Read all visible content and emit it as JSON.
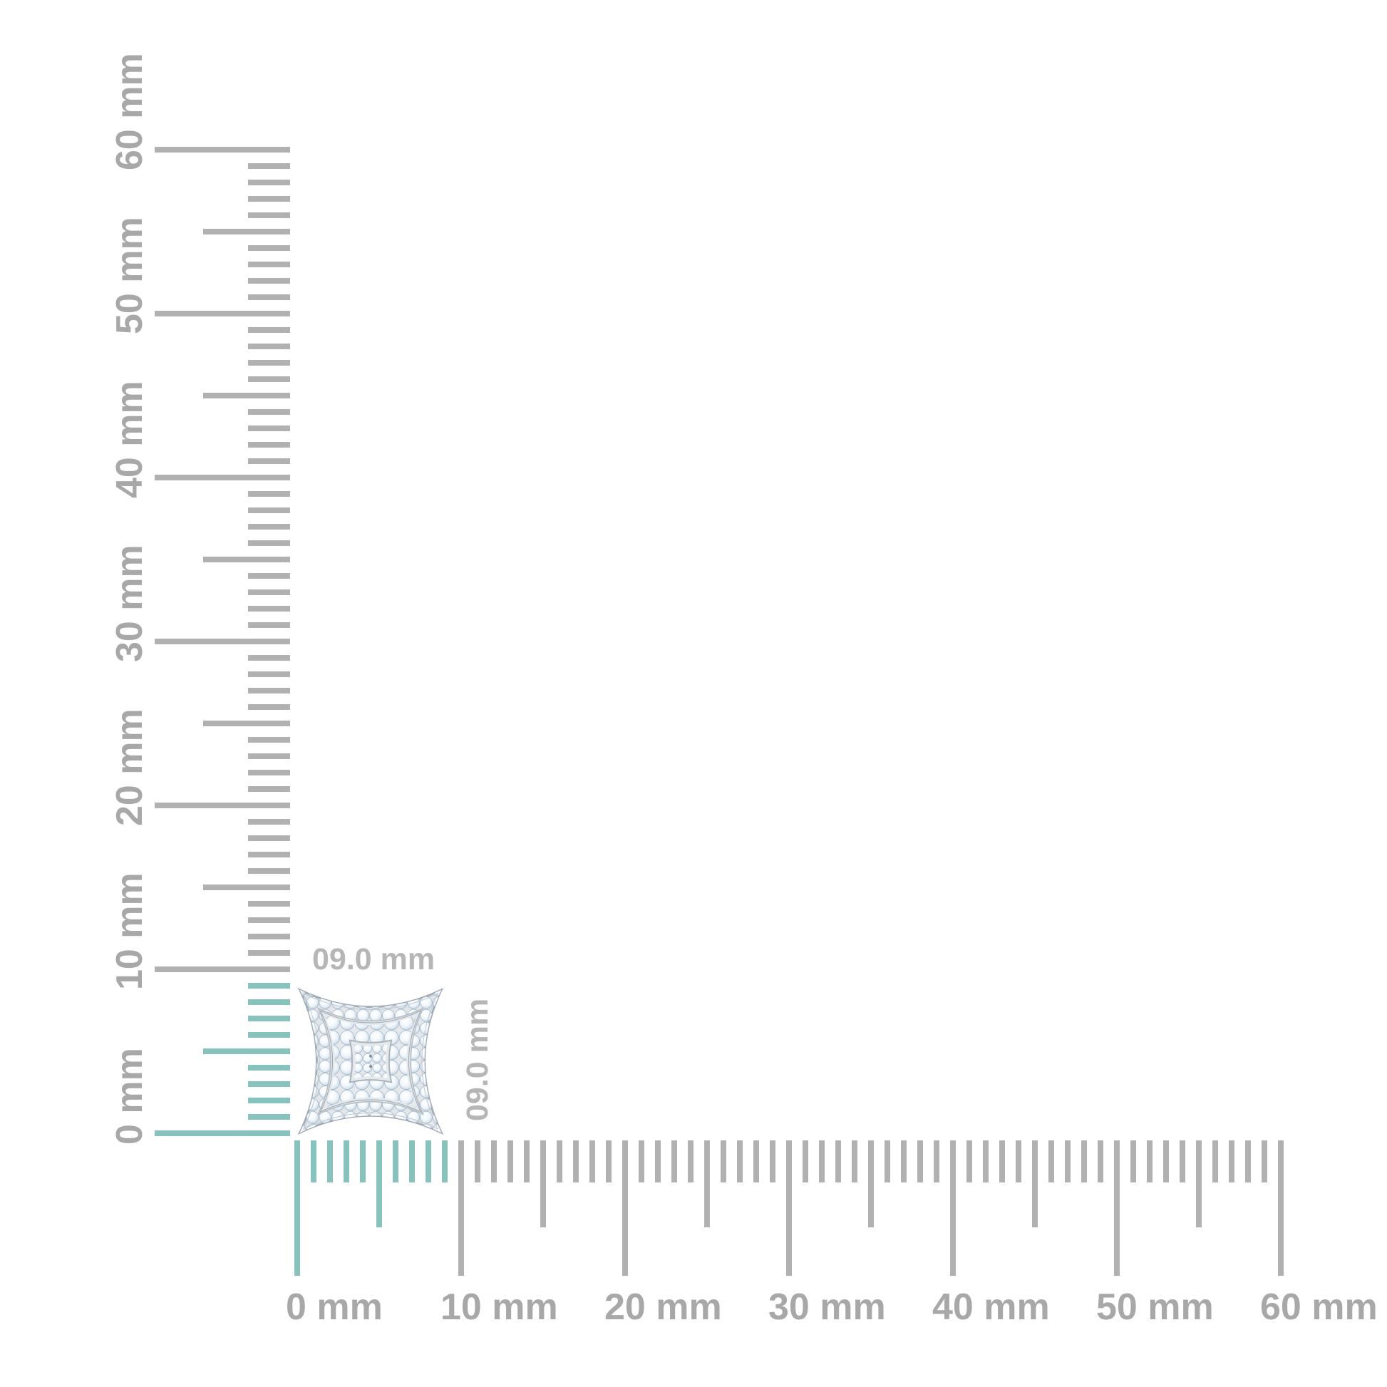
{
  "item": {
    "name": "pave diamond concave-square stud earring, top view",
    "width_label": "09.0 mm",
    "height_label": "09.0 mm",
    "size_mm": 9.0
  },
  "rulers": {
    "unit": "mm",
    "horizontal": {
      "max_mm": 60,
      "minor_step_mm": 1,
      "half_tick_mm": 5,
      "major_step_mm": 10,
      "highlight_mm": [
        0,
        9
      ],
      "labels": [
        "0 mm",
        "10 mm",
        "20 mm",
        "30 mm",
        "40 mm",
        "50 mm",
        "60 mm"
      ]
    },
    "vertical": {
      "max_mm": 60,
      "minor_step_mm": 1,
      "half_tick_mm": 5,
      "major_step_mm": 10,
      "highlight_mm": [
        0,
        9
      ],
      "labels": [
        "0 mm",
        "10 mm",
        "20 mm",
        "30 mm",
        "40 mm",
        "50 mm",
        "60 mm"
      ]
    }
  },
  "colors": {
    "background": "#ffffff",
    "tick_gray": "#b1b1b1",
    "ruler_label_gray": "#a8a8a8",
    "dimension_label_gray": "#b6b6b6",
    "highlight_teal": "#87c2bc",
    "metal_light": "#e6e9ec",
    "metal_outline": "#a2abb4",
    "diamond_shade": "#b9c9d9"
  }
}
